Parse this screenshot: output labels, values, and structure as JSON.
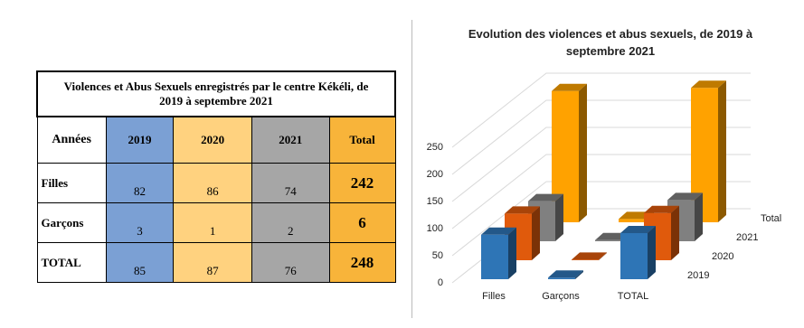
{
  "table": {
    "title": "Violences et Abus Sexuels enregistrés par le centre Kékéli, de 2019 à septembre 2021",
    "header": [
      "Années",
      "2019",
      "2020",
      "2021",
      "Total"
    ],
    "rows": [
      [
        "Filles",
        82,
        86,
        74,
        242
      ],
      [
        "Garçons",
        3,
        1,
        2,
        6
      ],
      [
        "TOTAL",
        85,
        87,
        76,
        248
      ]
    ]
  },
  "chart_data": {
    "type": "bar3d",
    "title": "Evolution des violences et abus sexuels, de 2019 à septembre 2021",
    "categories": [
      "Filles",
      "Garçons",
      "TOTAL"
    ],
    "series": [
      {
        "name": "2019",
        "color": "#2e75b6",
        "values": [
          82,
          3,
          85
        ]
      },
      {
        "name": "2020",
        "color": "#e05a0c",
        "values": [
          86,
          1,
          87
        ]
      },
      {
        "name": "2021",
        "color": "#808080",
        "values": [
          74,
          2,
          76
        ]
      },
      {
        "name": "Total",
        "color": "#ffa200",
        "values": [
          242,
          6,
          248
        ]
      }
    ],
    "ylim": [
      0,
      250
    ],
    "yticks": [
      0,
      50,
      100,
      150,
      200,
      250
    ],
    "grid": true
  }
}
